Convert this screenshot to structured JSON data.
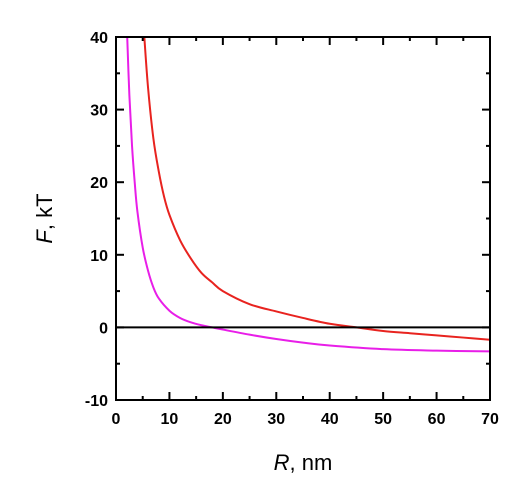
{
  "chart_data": {
    "type": "line",
    "title": "",
    "xlabel_var": "R",
    "xlabel_unit": ", nm",
    "ylabel_var": "F",
    "ylabel_unit": ", kT",
    "xlim": [
      0,
      70
    ],
    "ylim": [
      -10,
      40
    ],
    "xticks": [
      0,
      10,
      20,
      30,
      40,
      50,
      60,
      70
    ],
    "yticks": [
      -10,
      0,
      10,
      20,
      30,
      40
    ],
    "grid": false,
    "legend": "none",
    "zero_line": true,
    "series": [
      {
        "color": "#e8231f",
        "x": [
          5.3,
          6,
          7,
          8,
          9,
          10,
          12,
          14,
          16,
          18,
          20,
          25,
          30,
          35,
          40,
          45,
          50,
          55,
          60,
          65,
          70
        ],
        "y": [
          40,
          33,
          26,
          21.5,
          18,
          15.5,
          12,
          9.5,
          7.5,
          6.2,
          5,
          3.2,
          2.2,
          1.3,
          0.5,
          0,
          -0.5,
          -0.8,
          -1.1,
          -1.4,
          -1.7
        ]
      },
      {
        "color": "#e81ee8",
        "x": [
          2.1,
          2.5,
          3,
          3.5,
          4,
          5,
          6,
          7,
          8,
          10,
          12,
          14,
          16,
          18,
          20,
          25,
          30,
          35,
          40,
          50,
          60,
          70
        ],
        "y": [
          40,
          32,
          25,
          20,
          16,
          11,
          7.8,
          5.5,
          4,
          2.3,
          1.3,
          0.7,
          0.3,
          0,
          -0.3,
          -1,
          -1.6,
          -2.1,
          -2.5,
          -3,
          -3.2,
          -3.3
        ]
      }
    ]
  }
}
